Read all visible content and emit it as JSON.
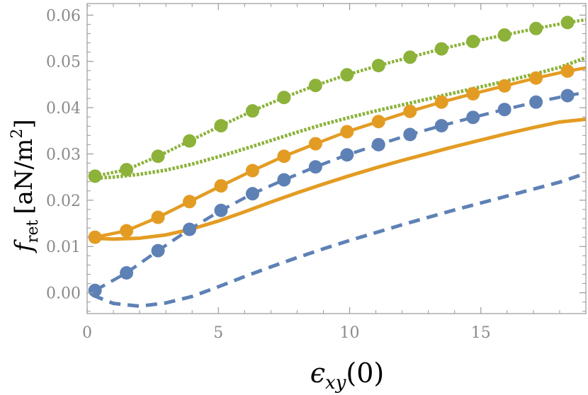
{
  "chart_data": {
    "type": "line",
    "xlabel": "ϵxy(0)",
    "xlabel_parts": {
      "main": "ϵ",
      "sub": "xy",
      "rest": "(0)"
    },
    "ylabel": "fret [aN/m2]",
    "ylabel_parts": {
      "main": "f",
      "sub": "ret",
      "unit": "[aN/m",
      "sup": "2",
      "close": "]"
    },
    "xlim": [
      0,
      19
    ],
    "ylim": [
      -0.0045,
      0.0625
    ],
    "x_ticks": [
      0,
      5,
      10,
      15
    ],
    "x_tick_labels": [
      "0",
      "5",
      "10",
      "15"
    ],
    "y_ticks": [
      0.0,
      0.01,
      0.02,
      0.03,
      0.04,
      0.05,
      0.06
    ],
    "y_tick_labels": [
      "0.00",
      "0.01",
      "0.02",
      "0.03",
      "0.04",
      "0.05",
      "0.06"
    ],
    "grid": false,
    "series": [
      {
        "name": "green-dotted-line",
        "color": "#8cb23a",
        "style": "dotted",
        "x": [
          0.2,
          1.0,
          2.0,
          3.0,
          4.0,
          5.0,
          6.0,
          7.0,
          8.0,
          9.0,
          10.0,
          11.0,
          12.0,
          13.0,
          14.0,
          15.0,
          16.0,
          17.0,
          18.0,
          19.0
        ],
        "y": [
          0.0247,
          0.025,
          0.0256,
          0.0265,
          0.0278,
          0.0294,
          0.0311,
          0.0329,
          0.0347,
          0.0364,
          0.0379,
          0.0393,
          0.0406,
          0.0419,
          0.0432,
          0.0445,
          0.0458,
          0.0472,
          0.0487,
          0.0508
        ]
      },
      {
        "name": "green-dotted-markers",
        "color": "#8cb23a",
        "style": "dotted",
        "markers": true,
        "x": [
          0.3,
          1.5,
          2.7,
          3.9,
          5.1,
          6.3,
          7.5,
          8.7,
          9.9,
          11.1,
          12.3,
          13.5,
          14.7,
          15.9,
          17.1,
          18.3,
          19.0
        ],
        "y": [
          0.0252,
          0.0266,
          0.0295,
          0.0328,
          0.0361,
          0.0393,
          0.0422,
          0.0448,
          0.0471,
          0.0491,
          0.0509,
          0.0527,
          0.0543,
          0.0557,
          0.0571,
          0.0584,
          0.059
        ]
      },
      {
        "name": "orange-solid-line",
        "color": "#e39c23",
        "style": "solid",
        "x": [
          0.2,
          1.0,
          2.0,
          3.0,
          4.0,
          5.0,
          6.0,
          7.0,
          8.0,
          9.0,
          10.0,
          11.0,
          12.0,
          13.0,
          14.0,
          15.0,
          16.0,
          17.0,
          18.0,
          19.0
        ],
        "y": [
          0.0118,
          0.0116,
          0.0118,
          0.0125,
          0.0138,
          0.0155,
          0.0175,
          0.0196,
          0.0216,
          0.0235,
          0.0253,
          0.027,
          0.0286,
          0.0301,
          0.0316,
          0.033,
          0.0344,
          0.0357,
          0.0369,
          0.0375
        ]
      },
      {
        "name": "orange-solid-markers",
        "color": "#e39c23",
        "style": "solid",
        "markers": true,
        "x": [
          0.3,
          1.5,
          2.7,
          3.9,
          5.1,
          6.3,
          7.5,
          8.7,
          9.9,
          11.1,
          12.3,
          13.5,
          14.7,
          15.9,
          17.1,
          18.3,
          19.0
        ],
        "y": [
          0.012,
          0.0134,
          0.0163,
          0.0197,
          0.0231,
          0.0264,
          0.0295,
          0.0322,
          0.0348,
          0.037,
          0.0392,
          0.0412,
          0.043,
          0.0447,
          0.0464,
          0.0479,
          0.0486
        ]
      },
      {
        "name": "blue-dashed-line",
        "color": "#5e81b5",
        "style": "dashed",
        "x": [
          0.2,
          1.0,
          2.0,
          3.0,
          4.0,
          5.0,
          6.0,
          7.0,
          8.0,
          9.0,
          10.0,
          11.0,
          12.0,
          13.0,
          14.0,
          15.0,
          16.0,
          17.0,
          18.0,
          19.0
        ],
        "y": [
          -0.0005,
          -0.0023,
          -0.0029,
          -0.0022,
          -0.0008,
          0.0013,
          0.0035,
          0.0056,
          0.0076,
          0.0095,
          0.0113,
          0.013,
          0.0147,
          0.0163,
          0.0179,
          0.0194,
          0.0209,
          0.0224,
          0.0239,
          0.0258
        ]
      },
      {
        "name": "blue-dashed-markers",
        "color": "#5e81b5",
        "style": "dashed",
        "markers": true,
        "x": [
          0.3,
          1.5,
          2.7,
          3.9,
          5.1,
          6.3,
          7.5,
          8.7,
          9.9,
          11.1,
          12.3,
          13.5,
          14.7,
          15.9,
          17.1,
          18.3,
          19.0
        ],
        "y": [
          0.0005,
          0.0043,
          0.0091,
          0.0137,
          0.0178,
          0.0214,
          0.0244,
          0.0272,
          0.0298,
          0.032,
          0.0342,
          0.0361,
          0.0379,
          0.0396,
          0.0412,
          0.0426,
          0.0433
        ]
      }
    ]
  }
}
